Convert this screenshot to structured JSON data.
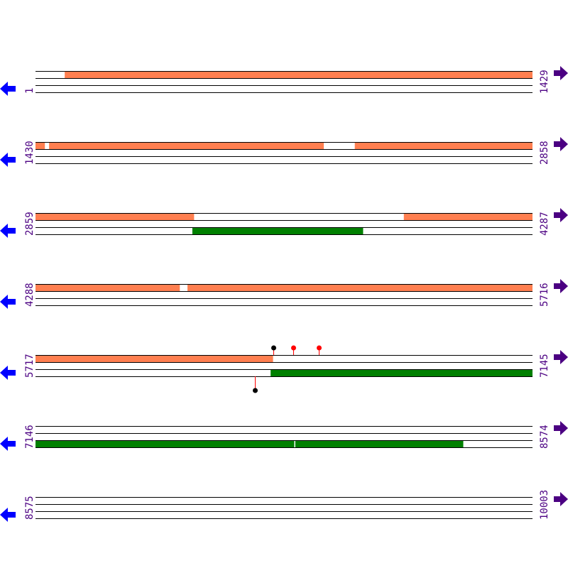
{
  "colors": {
    "orange_feature": "#ff7f50",
    "green_feature": "#008000",
    "left_arrow": "#0000ff",
    "right_arrow": "#4b0082",
    "label": "#4b0082",
    "stem": "#ff0000"
  },
  "bases_per_row": 1429,
  "rows": [
    {
      "start": "1",
      "end": "1429",
      "s": 1,
      "features": [
        {
          "track": 1,
          "color": "orange",
          "from": 85,
          "to": 1429
        }
      ],
      "markers": []
    },
    {
      "start": "1430",
      "end": "2858",
      "s": 1430,
      "features": [
        {
          "track": 1,
          "color": "orange",
          "from": 1430,
          "to": 1456
        },
        {
          "track": 1,
          "color": "orange",
          "from": 1469,
          "to": 2258
        },
        {
          "track": 1,
          "color": "orange",
          "from": 2348,
          "to": 2858
        }
      ],
      "markers": []
    },
    {
      "start": "2859",
      "end": "4287",
      "s": 2859,
      "features": [
        {
          "track": 1,
          "color": "orange",
          "from": 2859,
          "to": 3314
        },
        {
          "track": 1,
          "color": "orange",
          "from": 3918,
          "to": 4287
        },
        {
          "track": 2,
          "color": "green",
          "from": 3310,
          "to": 3800
        }
      ],
      "markers": []
    },
    {
      "start": "4288",
      "end": "5716",
      "s": 4288,
      "features": [
        {
          "track": 1,
          "color": "orange",
          "from": 4288,
          "to": 4702
        },
        {
          "track": 1,
          "color": "orange",
          "from": 4725,
          "to": 5716
        }
      ],
      "markers": []
    },
    {
      "start": "5717",
      "end": "7145",
      "s": 5717,
      "features": [
        {
          "track": 1,
          "color": "orange",
          "from": 5717,
          "to": 6399
        },
        {
          "track": 2,
          "color": "green",
          "from": 6393,
          "to": 7145
        }
      ],
      "markers": [
        {
          "pos": 6401,
          "side": "top",
          "color": "black"
        },
        {
          "pos": 6458,
          "side": "top",
          "color": "red"
        },
        {
          "pos": 6531,
          "side": "top",
          "color": "red"
        },
        {
          "pos": 6348,
          "side": "bottom",
          "color": "black"
        }
      ]
    },
    {
      "start": "7146",
      "end": "8574",
      "s": 7146,
      "features": [
        {
          "track": 2,
          "color": "green",
          "from": 7146,
          "to": 7889
        },
        {
          "track": 2,
          "color": "green",
          "from": 7893,
          "to": 8375
        }
      ],
      "markers": []
    },
    {
      "start": "8575",
      "end": "10003",
      "s": 8575,
      "features": [],
      "markers": []
    }
  ]
}
